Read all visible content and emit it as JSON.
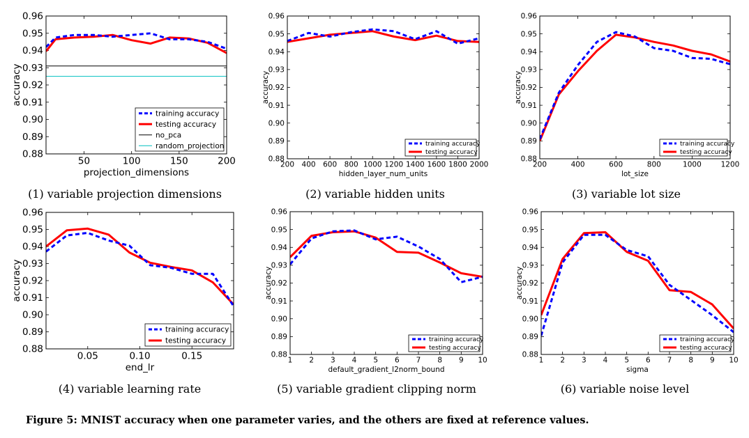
{
  "figure_caption": "Figure 5: MNIST accuracy when one parameter varies, and the others are fixed at reference values.",
  "colors": {
    "training": "#0000ff",
    "testing": "#ff0000",
    "no_pca": "#000000",
    "random_projection": "#00bfbf"
  },
  "chart_data": [
    {
      "type": "line",
      "caption": "(1) variable projection dimensions",
      "xlabel": "projection_dimensions",
      "ylabel": "accuracy",
      "xlim": [
        10,
        200
      ],
      "ylim": [
        0.88,
        0.96
      ],
      "xticks": [
        50,
        100,
        150,
        200
      ],
      "xtick_labels": [
        "50",
        "100",
        "150",
        "200"
      ],
      "yticks": [
        0.88,
        0.89,
        0.9,
        0.91,
        0.92,
        0.93,
        0.94,
        0.95,
        0.96
      ],
      "ytick_labels": [
        "0.88",
        "0.89",
        "0.90",
        "0.91",
        "0.92",
        "0.93",
        "0.94",
        "0.95",
        "0.96"
      ],
      "legend": "lower-right",
      "series": [
        {
          "name": "training accuracy",
          "style": "training",
          "x": [
            10,
            20,
            40,
            60,
            80,
            100,
            120,
            140,
            160,
            180,
            200
          ],
          "y": [
            0.942,
            0.9475,
            0.949,
            0.949,
            0.948,
            0.949,
            0.95,
            0.9465,
            0.9465,
            0.945,
            0.941
          ]
        },
        {
          "name": "testing accuracy",
          "style": "testing",
          "x": [
            10,
            20,
            40,
            60,
            80,
            100,
            120,
            140,
            160,
            180,
            200
          ],
          "y": [
            0.9395,
            0.9465,
            0.9475,
            0.948,
            0.949,
            0.946,
            0.944,
            0.9475,
            0.947,
            0.9445,
            0.9385
          ]
        },
        {
          "name": "no_pca",
          "style": "no_pca",
          "x": [
            10,
            200
          ],
          "y": [
            0.931,
            0.931
          ]
        },
        {
          "name": "random_projection",
          "style": "random_projection",
          "x": [
            10,
            200
          ],
          "y": [
            0.925,
            0.925
          ]
        }
      ]
    },
    {
      "type": "line",
      "caption": "(2) variable hidden units",
      "xlabel": "hidden_layer_num_units",
      "ylabel": "accuracy",
      "xlim": [
        200,
        2000
      ],
      "ylim": [
        0.88,
        0.96
      ],
      "xticks": [
        200,
        400,
        600,
        800,
        1000,
        1200,
        1400,
        1600,
        1800,
        2000
      ],
      "xtick_labels": [
        "200",
        "400",
        "600",
        "800",
        "1000",
        "1200",
        "1400",
        "1600",
        "1800",
        "2000"
      ],
      "yticks": [
        0.88,
        0.89,
        0.9,
        0.91,
        0.92,
        0.93,
        0.94,
        0.95,
        0.96
      ],
      "ytick_labels": [
        "0.88",
        "0.89",
        "0.90",
        "0.91",
        "0.92",
        "0.93",
        "0.94",
        "0.95",
        "0.96"
      ],
      "legend": "lower-right",
      "series": [
        {
          "name": "training accuracy",
          "style": "training",
          "x": [
            200,
            400,
            600,
            800,
            1000,
            1200,
            1400,
            1600,
            1800,
            2000
          ],
          "y": [
            0.946,
            0.9505,
            0.9485,
            0.951,
            0.9525,
            0.9515,
            0.947,
            0.9515,
            0.9445,
            0.9475
          ]
        },
        {
          "name": "testing accuracy",
          "style": "testing",
          "x": [
            200,
            400,
            600,
            800,
            1000,
            1200,
            1400,
            1600,
            1800,
            2000
          ],
          "y": [
            0.9455,
            0.9475,
            0.9495,
            0.9505,
            0.9515,
            0.9485,
            0.9465,
            0.949,
            0.946,
            0.9455
          ]
        }
      ]
    },
    {
      "type": "line",
      "caption": "(3) variable lot size",
      "xlabel": "lot_size",
      "ylabel": "accuracy",
      "xlim": [
        200,
        1200
      ],
      "ylim": [
        0.88,
        0.96
      ],
      "xticks": [
        200,
        400,
        600,
        800,
        1000,
        1200
      ],
      "xtick_labels": [
        "200",
        "400",
        "600",
        "800",
        "1000",
        "1200"
      ],
      "yticks": [
        0.88,
        0.89,
        0.9,
        0.91,
        0.92,
        0.93,
        0.94,
        0.95,
        0.96
      ],
      "ytick_labels": [
        "0.88",
        "0.89",
        "0.90",
        "0.91",
        "0.92",
        "0.93",
        "0.94",
        "0.95",
        "0.96"
      ],
      "legend": "lower-right",
      "series": [
        {
          "name": "training accuracy",
          "style": "training",
          "x": [
            200,
            300,
            400,
            500,
            600,
            700,
            800,
            900,
            1000,
            1100,
            1200
          ],
          "y": [
            0.891,
            0.917,
            0.9325,
            0.9455,
            0.951,
            0.9485,
            0.942,
            0.9405,
            0.9365,
            0.936,
            0.933
          ]
        },
        {
          "name": "testing accuracy",
          "style": "testing",
          "x": [
            200,
            300,
            400,
            500,
            600,
            700,
            800,
            900,
            1000,
            1100,
            1200
          ],
          "y": [
            0.89,
            0.916,
            0.929,
            0.9405,
            0.9495,
            0.948,
            0.9455,
            0.9435,
            0.9405,
            0.9385,
            0.9345
          ]
        }
      ]
    },
    {
      "type": "line",
      "caption": "(4) variable learning rate",
      "xlabel": "end_lr",
      "ylabel": "accuracy",
      "xlim": [
        0.01,
        0.19
      ],
      "ylim": [
        0.88,
        0.96
      ],
      "xticks": [
        0.05,
        0.1,
        0.15
      ],
      "xtick_labels": [
        "0.05",
        "0.10",
        "0.15"
      ],
      "yticks": [
        0.88,
        0.89,
        0.9,
        0.91,
        0.92,
        0.93,
        0.94,
        0.95,
        0.96
      ],
      "ytick_labels": [
        "0.88",
        "0.89",
        "0.90",
        "0.91",
        "0.92",
        "0.93",
        "0.94",
        "0.95",
        "0.96"
      ],
      "legend": "lower-right",
      "series": [
        {
          "name": "training accuracy",
          "style": "training",
          "x": [
            0.01,
            0.03,
            0.05,
            0.07,
            0.09,
            0.11,
            0.13,
            0.15,
            0.17,
            0.19
          ],
          "y": [
            0.937,
            0.9465,
            0.948,
            0.9435,
            0.9405,
            0.929,
            0.9275,
            0.924,
            0.924,
            0.905
          ]
        },
        {
          "name": "testing accuracy",
          "style": "testing",
          "x": [
            0.01,
            0.03,
            0.05,
            0.07,
            0.09,
            0.11,
            0.13,
            0.15,
            0.17,
            0.19
          ],
          "y": [
            0.94,
            0.9495,
            0.9505,
            0.947,
            0.9365,
            0.9305,
            0.928,
            0.926,
            0.919,
            0.906
          ]
        }
      ]
    },
    {
      "type": "line",
      "caption": "(5) variable gradient clipping norm",
      "xlabel": "default_gradient_l2norm_bound",
      "ylabel": "accuracy",
      "xlim": [
        1,
        10
      ],
      "ylim": [
        0.88,
        0.96
      ],
      "xticks": [
        1,
        2,
        3,
        4,
        5,
        6,
        7,
        8,
        9,
        10
      ],
      "xtick_labels": [
        "1",
        "2",
        "3",
        "4",
        "5",
        "6",
        "7",
        "8",
        "9",
        "10"
      ],
      "yticks": [
        0.88,
        0.89,
        0.9,
        0.91,
        0.92,
        0.93,
        0.94,
        0.95,
        0.96
      ],
      "ytick_labels": [
        "0.88",
        "0.89",
        "0.90",
        "0.91",
        "0.92",
        "0.93",
        "0.94",
        "0.95",
        "0.96"
      ],
      "legend": "lower-right",
      "series": [
        {
          "name": "training accuracy",
          "style": "training",
          "x": [
            1,
            2,
            3,
            4,
            5,
            6,
            7,
            8,
            9,
            10
          ],
          "y": [
            0.9305,
            0.945,
            0.949,
            0.9495,
            0.9445,
            0.946,
            0.9405,
            0.9335,
            0.9205,
            0.9235
          ]
        },
        {
          "name": "testing accuracy",
          "style": "testing",
          "x": [
            1,
            2,
            3,
            4,
            5,
            6,
            7,
            8,
            9,
            10
          ],
          "y": [
            0.9345,
            0.9465,
            0.9485,
            0.949,
            0.9455,
            0.9375,
            0.937,
            0.9315,
            0.9255,
            0.9235
          ]
        }
      ]
    },
    {
      "type": "line",
      "caption": "(6) variable noise level",
      "xlabel": "sigma",
      "ylabel": "accuracy",
      "xlim": [
        1,
        10
      ],
      "ylim": [
        0.88,
        0.96
      ],
      "xticks": [
        1,
        2,
        3,
        4,
        5,
        6,
        7,
        8,
        9,
        10
      ],
      "xtick_labels": [
        "1",
        "2",
        "3",
        "4",
        "5",
        "6",
        "7",
        "8",
        "9",
        "10"
      ],
      "yticks": [
        0.88,
        0.89,
        0.9,
        0.91,
        0.92,
        0.93,
        0.94,
        0.95,
        0.96
      ],
      "ytick_labels": [
        "0.88",
        "0.89",
        "0.90",
        "0.91",
        "0.92",
        "0.93",
        "0.94",
        "0.95",
        "0.96"
      ],
      "legend": "lower-right",
      "series": [
        {
          "name": "training accuracy",
          "style": "training",
          "x": [
            1,
            2,
            3,
            4,
            5,
            6,
            7,
            8,
            9,
            10
          ],
          "y": [
            0.8905,
            0.9315,
            0.947,
            0.947,
            0.9385,
            0.935,
            0.919,
            0.9105,
            0.902,
            0.8925
          ]
        },
        {
          "name": "testing accuracy",
          "style": "testing",
          "x": [
            1,
            2,
            3,
            4,
            5,
            6,
            7,
            8,
            9,
            10
          ],
          "y": [
            0.902,
            0.9335,
            0.948,
            0.9485,
            0.9375,
            0.9325,
            0.916,
            0.915,
            0.908,
            0.8945
          ]
        }
      ]
    }
  ]
}
